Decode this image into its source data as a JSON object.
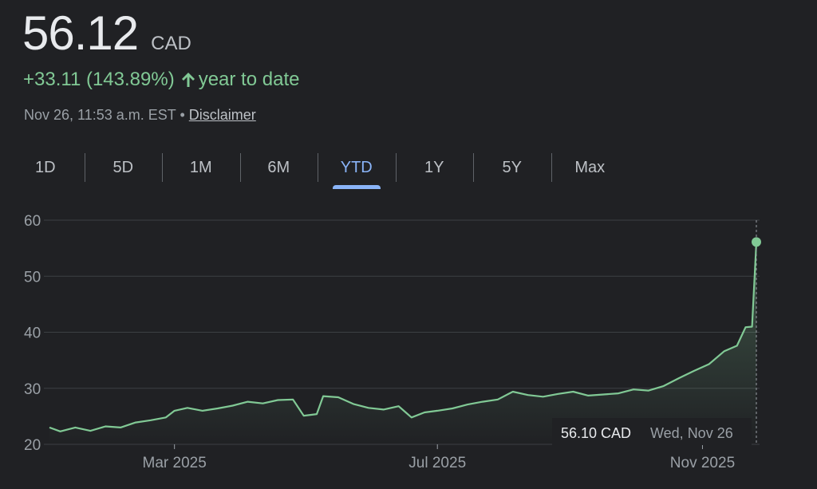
{
  "quote": {
    "price": "56.12",
    "currency": "CAD",
    "change": "+33.11 (143.89%)",
    "change_period": "year to date",
    "timestamp": "Nov 26, 11:53 a.m. EST",
    "separator": "•",
    "disclaimer": "Disclaimer",
    "up_color": "#81c995"
  },
  "tabs": [
    {
      "label": "1D",
      "active": false
    },
    {
      "label": "5D",
      "active": false
    },
    {
      "label": "1M",
      "active": false
    },
    {
      "label": "6M",
      "active": false
    },
    {
      "label": "YTD",
      "active": true
    },
    {
      "label": "1Y",
      "active": false
    },
    {
      "label": "5Y",
      "active": false
    },
    {
      "label": "Max",
      "active": false
    }
  ],
  "chart_data": {
    "type": "area",
    "title": "",
    "xlabel": "",
    "ylabel": "",
    "ylim": [
      20,
      60
    ],
    "y_ticks": [
      20,
      30,
      40,
      50,
      60
    ],
    "x_range": [
      "2025-01-02",
      "2025-11-26"
    ],
    "x_ticks": [
      {
        "label": "Mar 2025",
        "date": "2025-03-01"
      },
      {
        "label": "Jul 2025",
        "date": "2025-07-01"
      },
      {
        "label": "Nov 2025",
        "date": "2025-11-01"
      }
    ],
    "grid": true,
    "line_color": "#81c995",
    "series": [
      {
        "points": [
          [
            "2025-01-02",
            23.0
          ],
          [
            "2025-01-07",
            22.3
          ],
          [
            "2025-01-14",
            23.0
          ],
          [
            "2025-01-21",
            22.4
          ],
          [
            "2025-01-28",
            23.2
          ],
          [
            "2025-02-04",
            23.0
          ],
          [
            "2025-02-11",
            23.9
          ],
          [
            "2025-02-18",
            24.3
          ],
          [
            "2025-02-25",
            24.8
          ],
          [
            "2025-03-01",
            26.0
          ],
          [
            "2025-03-07",
            26.5
          ],
          [
            "2025-03-14",
            26.0
          ],
          [
            "2025-03-21",
            26.4
          ],
          [
            "2025-03-28",
            26.9
          ],
          [
            "2025-04-04",
            27.6
          ],
          [
            "2025-04-11",
            27.3
          ],
          [
            "2025-04-18",
            27.9
          ],
          [
            "2025-04-25",
            28.0
          ],
          [
            "2025-04-30",
            25.1
          ],
          [
            "2025-05-06",
            25.4
          ],
          [
            "2025-05-09",
            28.6
          ],
          [
            "2025-05-16",
            28.4
          ],
          [
            "2025-05-23",
            27.2
          ],
          [
            "2025-05-30",
            26.5
          ],
          [
            "2025-06-06",
            26.2
          ],
          [
            "2025-06-13",
            26.8
          ],
          [
            "2025-06-19",
            24.8
          ],
          [
            "2025-06-25",
            25.7
          ],
          [
            "2025-07-01",
            26.0
          ],
          [
            "2025-07-08",
            26.4
          ],
          [
            "2025-07-15",
            27.1
          ],
          [
            "2025-07-22",
            27.6
          ],
          [
            "2025-07-29",
            28.0
          ],
          [
            "2025-08-05",
            29.4
          ],
          [
            "2025-08-12",
            28.8
          ],
          [
            "2025-08-19",
            28.5
          ],
          [
            "2025-08-26",
            29.0
          ],
          [
            "2025-09-02",
            29.4
          ],
          [
            "2025-09-09",
            28.7
          ],
          [
            "2025-09-16",
            28.9
          ],
          [
            "2025-09-23",
            29.1
          ],
          [
            "2025-09-30",
            29.8
          ],
          [
            "2025-10-07",
            29.6
          ],
          [
            "2025-10-14",
            30.4
          ],
          [
            "2025-10-21",
            31.8
          ],
          [
            "2025-10-28",
            33.1
          ],
          [
            "2025-11-04",
            34.3
          ],
          [
            "2025-11-11",
            36.6
          ],
          [
            "2025-11-17",
            37.6
          ],
          [
            "2025-11-21",
            40.9
          ],
          [
            "2025-11-24",
            41.0
          ],
          [
            "2025-11-26",
            56.1
          ]
        ]
      }
    ],
    "tooltip": {
      "value": "56.10 CAD",
      "date": "Wed, Nov 26"
    }
  }
}
